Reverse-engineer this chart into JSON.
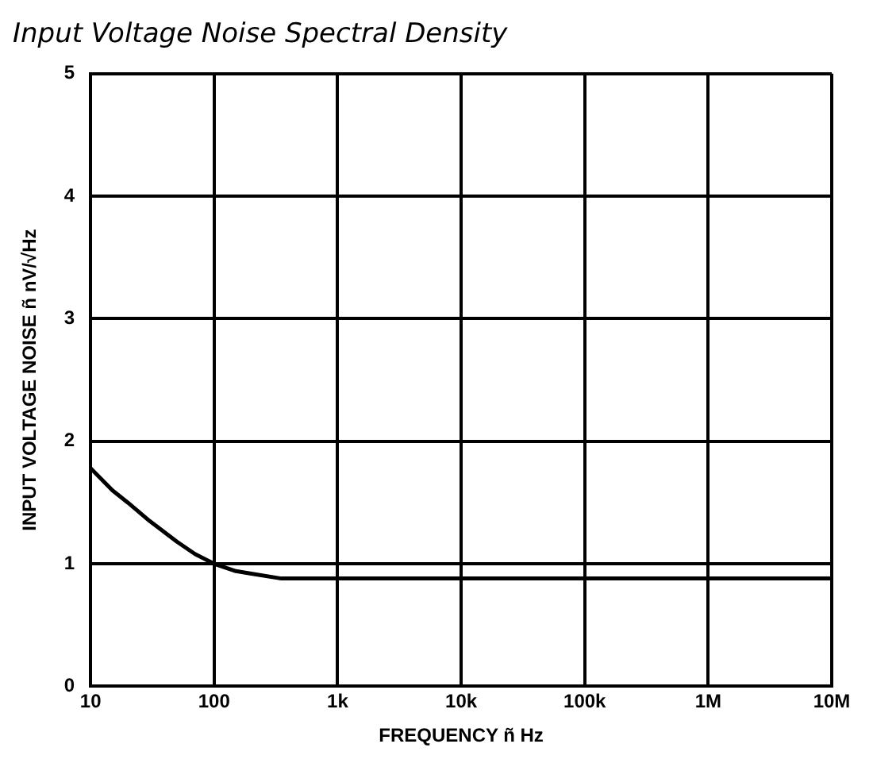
{
  "chart_data": {
    "type": "line",
    "title": "Input Voltage Noise Spectral Density",
    "xlabel": "FREQUENCY ñ Hz",
    "ylabel": "INPUT VOLTAGE NOISE ñ nV/√Hz",
    "log": "x",
    "x": [
      10,
      15,
      20,
      30,
      50,
      70,
      100,
      150,
      200,
      350,
      1000,
      10000,
      100000,
      1000000,
      10000000
    ],
    "series": [
      {
        "color": "#000000",
        "values": [
          1.78,
          1.6,
          1.5,
          1.35,
          1.18,
          1.08,
          1.0,
          0.94,
          0.92,
          0.88,
          0.88,
          0.88,
          0.88,
          0.88,
          0.88
        ]
      }
    ],
    "xlim": [
      10,
      10000000
    ],
    "xticks": [
      {
        "value": 10,
        "label": "10"
      },
      {
        "value": 100,
        "label": "100"
      },
      {
        "value": 1000,
        "label": "1k"
      },
      {
        "value": 10000,
        "label": "10k"
      },
      {
        "value": 100000,
        "label": "100k"
      },
      {
        "value": 1000000,
        "label": "1M"
      },
      {
        "value": 10000000,
        "label": "10M"
      }
    ],
    "ylim": [
      0,
      5
    ],
    "yticks": [
      0,
      1,
      2,
      3,
      4,
      5
    ],
    "grid": true,
    "legend": false,
    "marker": "none",
    "line_style": "solid"
  }
}
